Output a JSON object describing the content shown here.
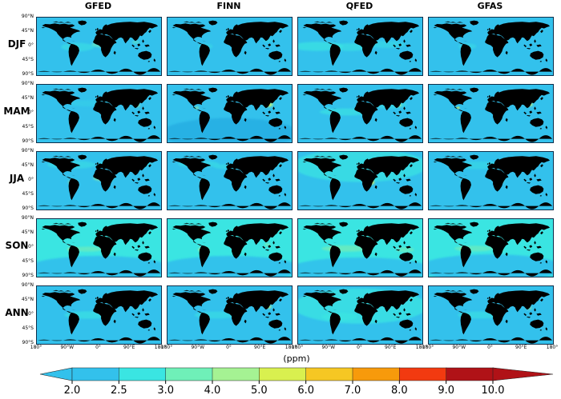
{
  "chart_data": {
    "type": "heatmap",
    "title": "",
    "columns": [
      "GFED",
      "FINN",
      "QFED",
      "GFAS"
    ],
    "rows": [
      "DJF",
      "MAM",
      "JJA",
      "SON",
      "ANN"
    ],
    "units": "(ppm)",
    "axis": {
      "lat_ticks": [
        "90°N",
        "45°N",
        "0°",
        "45°S",
        "90°S"
      ],
      "lon_ticks": [
        "180°",
        "90°W",
        "0°",
        "90°E",
        "180°"
      ]
    },
    "colorbar": {
      "ticks": [
        "2.0",
        "2.5",
        "3.0",
        "4.0",
        "5.0",
        "6.0",
        "7.0",
        "8.0",
        "9.0",
        "10.0"
      ],
      "colors": [
        "#33c1ec",
        "#3ae5e2",
        "#6ff0b8",
        "#a5f293",
        "#d9f04f",
        "#f6c723",
        "#f79a0b",
        "#f23a10",
        "#b01217"
      ],
      "extend": "both"
    },
    "palette": {
      "blue": "#33c1ec",
      "dkblue": "#27afe3",
      "cyan": "#3ae5e2",
      "teal": "#6ff0b8",
      "green": "#a5f293",
      "ygreen": "#d9f04f",
      "gold": "#f6c723",
      "orange": "#f79a0b",
      "red": "#f23a10",
      "dred": "#b01217"
    },
    "panels": [
      {
        "row": 0,
        "col": 0,
        "base": "blue",
        "blobs": [
          [
            118,
            92,
            48,
            13,
            "cyan",
            0.55,
            "s"
          ],
          [
            185,
            84,
            26,
            9,
            "teal",
            0.6,
            "s"
          ],
          [
            197,
            80,
            12,
            6,
            "ygreen",
            0.9,
            "s"
          ],
          [
            200,
            80,
            6,
            4,
            "gold",
            0.95,
            "m"
          ],
          [
            201,
            80,
            3,
            2.2,
            "red",
            0.95,
            "n"
          ],
          [
            287,
            77,
            11,
            5,
            "teal",
            0.5,
            "s"
          ]
        ]
      },
      {
        "row": 0,
        "col": 1,
        "base": "blue",
        "blobs": [
          [
            110,
            90,
            22,
            8,
            "cyan",
            0.4,
            "s"
          ],
          [
            290,
            72,
            12,
            6,
            "cyan",
            0.45,
            "s"
          ],
          [
            200,
            82,
            10,
            6,
            "green",
            0.8,
            "s"
          ],
          [
            200,
            82,
            4.5,
            3,
            "ygreen",
            0.9,
            "m"
          ]
        ]
      },
      {
        "row": 0,
        "col": 2,
        "base": "blue",
        "blobs": [
          [
            55,
            90,
            75,
            14,
            "cyan",
            0.7,
            "s"
          ],
          [
            150,
            92,
            55,
            12,
            "cyan",
            0.6,
            "s"
          ],
          [
            255,
            84,
            55,
            11,
            "cyan",
            0.45,
            "s"
          ],
          [
            199,
            78,
            17,
            6,
            "ygreen",
            0.95,
            "s"
          ],
          [
            201,
            78,
            8,
            4,
            "gold",
            0.95,
            "m"
          ],
          [
            203,
            78,
            3,
            2,
            "red",
            0.9,
            "n"
          ]
        ]
      },
      {
        "row": 0,
        "col": 3,
        "base": "blue",
        "blobs": [
          [
            112,
            90,
            26,
            9,
            "cyan",
            0.45,
            "s"
          ],
          [
            196,
            79,
            15,
            5.5,
            "ygreen",
            0.92,
            "s"
          ],
          [
            199,
            79,
            7,
            3.5,
            "gold",
            0.9,
            "m"
          ],
          [
            201,
            79,
            2.5,
            2,
            "red",
            0.85,
            "n"
          ]
        ]
      },
      {
        "row": 1,
        "col": 0,
        "base": "blue",
        "blobs": [
          [
            150,
            58,
            62,
            10,
            "cyan",
            0.25,
            "s"
          ],
          [
            200,
            86,
            9,
            6,
            "green",
            0.8,
            "s"
          ],
          [
            200,
            86,
            4,
            3,
            "ygreen",
            0.85,
            "m"
          ],
          [
            290,
            64,
            9,
            5,
            "green",
            0.75,
            "s"
          ]
        ]
      },
      {
        "row": 1,
        "col": 1,
        "base": "blue",
        "blobs": [
          [
            180,
            152,
            200,
            48,
            "dkblue",
            0.85,
            "s"
          ],
          [
            85,
            72,
            6,
            4,
            "green",
            0.7,
            "s"
          ],
          [
            200,
            84,
            8,
            5,
            "green",
            0.8,
            "s"
          ],
          [
            292,
            62,
            14,
            8,
            "green",
            0.85,
            "s"
          ],
          [
            292,
            62,
            7,
            4.5,
            "ygreen",
            0.9,
            "m"
          ],
          [
            292,
            62,
            3.5,
            2.5,
            "red",
            0.9,
            "n"
          ],
          [
            293,
            62,
            1.8,
            1.4,
            "dred",
            0.9,
            "n"
          ]
        ]
      },
      {
        "row": 1,
        "col": 2,
        "base": "blue",
        "blobs": [
          [
            140,
            85,
            78,
            11,
            "cyan",
            0.65,
            "s"
          ],
          [
            262,
            62,
            52,
            13,
            "cyan",
            0.45,
            "s"
          ],
          [
            290,
            64,
            10,
            5,
            "green",
            0.7,
            "s"
          ],
          [
            292,
            63,
            4,
            2.5,
            "ygreen",
            0.85,
            "m"
          ],
          [
            85,
            74,
            8,
            4,
            "cyan",
            0.6,
            "s"
          ]
        ]
      },
      {
        "row": 1,
        "col": 3,
        "base": "blue",
        "blobs": [
          [
            200,
            84,
            7,
            4,
            "green",
            0.5,
            "s"
          ],
          [
            85,
            72,
            5,
            3.5,
            "ygreen",
            0.7,
            "m"
          ],
          [
            292,
            62,
            10,
            6,
            "green",
            0.8,
            "s"
          ],
          [
            292,
            62,
            5,
            3,
            "ygreen",
            0.9,
            "m"
          ],
          [
            293,
            62,
            2,
            1.5,
            "gold",
            0.9,
            "n"
          ]
        ]
      },
      {
        "row": 2,
        "col": 0,
        "base": "blue",
        "blobs": [
          [
            100,
            40,
            70,
            13,
            "cyan",
            0.5,
            "s"
          ],
          [
            255,
            38,
            80,
            13,
            "cyan",
            0.45,
            "s"
          ],
          [
            105,
            95,
            14,
            7,
            "green",
            0.65,
            "s"
          ],
          [
            193,
            82,
            30,
            9,
            "green",
            0.55,
            "s"
          ],
          [
            203,
            88,
            14,
            8,
            "ygreen",
            0.9,
            "s"
          ],
          [
            204,
            89,
            8,
            5,
            "gold",
            0.95,
            "m"
          ],
          [
            205,
            89,
            5,
            3.5,
            "red",
            0.95,
            "n"
          ],
          [
            205,
            89,
            2.5,
            2,
            "dred",
            0.95,
            "n"
          ]
        ]
      },
      {
        "row": 2,
        "col": 1,
        "base": "blue",
        "blobs": [
          [
            90,
            38,
            60,
            11,
            "cyan",
            0.5,
            "s"
          ],
          [
            175,
            46,
            42,
            8,
            "cyan",
            0.5,
            "s"
          ],
          [
            272,
            40,
            62,
            10,
            "cyan",
            0.4,
            "s"
          ],
          [
            105,
            95,
            11,
            6,
            "green",
            0.45,
            "s"
          ],
          [
            205,
            90,
            12,
            8,
            "green",
            0.85,
            "s"
          ],
          [
            205,
            90,
            7,
            5,
            "ygreen",
            0.95,
            "m"
          ],
          [
            205,
            90,
            3,
            2,
            "gold",
            0.9,
            "n"
          ]
        ]
      },
      {
        "row": 2,
        "col": 2,
        "base": "blue",
        "blobs": [
          [
            180,
            42,
            195,
            52,
            "cyan",
            0.7,
            "s"
          ],
          [
            105,
            95,
            10,
            6,
            "green",
            0.55,
            "s"
          ],
          [
            205,
            95,
            16,
            9,
            "ygreen",
            0.85,
            "s"
          ],
          [
            205,
            95,
            9,
            5.5,
            "gold",
            0.95,
            "m"
          ],
          [
            206,
            95,
            5,
            3.5,
            "red",
            0.95,
            "n"
          ],
          [
            206,
            95,
            2,
            1.6,
            "dred",
            0.9,
            "n"
          ]
        ]
      },
      {
        "row": 2,
        "col": 3,
        "base": "blue",
        "blobs": [
          [
            145,
            42,
            95,
            12,
            "cyan",
            0.45,
            "s"
          ],
          [
            105,
            95,
            12,
            6,
            "green",
            0.55,
            "s"
          ],
          [
            203,
            90,
            14,
            8,
            "ygreen",
            0.8,
            "s"
          ],
          [
            204,
            90,
            8,
            5,
            "gold",
            0.9,
            "m"
          ],
          [
            205,
            90,
            4.5,
            3,
            "red",
            0.95,
            "n"
          ],
          [
            205,
            90,
            2,
            1.5,
            "dred",
            0.9,
            "n"
          ]
        ]
      },
      {
        "row": 3,
        "col": 0,
        "base": "cyan",
        "blobs": [
          [
            180,
            155,
            210,
            40,
            "blue",
            0.95,
            "s"
          ],
          [
            148,
            94,
            45,
            8,
            "green",
            0.35,
            "s"
          ],
          [
            105,
            95,
            16,
            8,
            "green",
            0.75,
            "s"
          ],
          [
            105,
            95,
            9,
            5,
            "ygreen",
            0.9,
            "m"
          ],
          [
            107,
            96,
            3,
            2,
            "gold",
            0.9,
            "n"
          ],
          [
            205,
            95,
            12,
            7,
            "green",
            0.75,
            "s"
          ],
          [
            205,
            95,
            6,
            3.5,
            "ygreen",
            0.9,
            "m"
          ]
        ]
      },
      {
        "row": 3,
        "col": 1,
        "base": "cyan",
        "blobs": [
          [
            180,
            155,
            210,
            40,
            "blue",
            0.95,
            "s"
          ],
          [
            290,
            80,
            9,
            5,
            "green",
            0.45,
            "s"
          ],
          [
            105,
            96,
            16,
            9,
            "green",
            0.8,
            "s"
          ],
          [
            105,
            96,
            10,
            6,
            "ygreen",
            0.95,
            "m"
          ],
          [
            105,
            96,
            5,
            3.5,
            "orange",
            0.95,
            "n"
          ],
          [
            105,
            96,
            2.2,
            1.8,
            "dred",
            0.9,
            "n"
          ],
          [
            205,
            95,
            12,
            7,
            "green",
            0.75,
            "s"
          ],
          [
            206,
            95,
            6,
            3.5,
            "ygreen",
            0.9,
            "m"
          ]
        ]
      },
      {
        "row": 3,
        "col": 2,
        "base": "cyan",
        "blobs": [
          [
            180,
            158,
            210,
            38,
            "blue",
            0.9,
            "s"
          ],
          [
            140,
            92,
            72,
            10,
            "green",
            0.4,
            "s"
          ],
          [
            105,
            95,
            13,
            7,
            "ygreen",
            0.85,
            "s"
          ],
          [
            106,
            95,
            5,
            3,
            "gold",
            0.85,
            "m"
          ],
          [
            205,
            95,
            10,
            6,
            "ygreen",
            0.8,
            "s"
          ],
          [
            310,
            96,
            26,
            8,
            "green",
            0.35,
            "s"
          ]
        ]
      },
      {
        "row": 3,
        "col": 3,
        "base": "cyan",
        "blobs": [
          [
            180,
            152,
            210,
            42,
            "blue",
            0.95,
            "s"
          ],
          [
            132,
            92,
            58,
            9,
            "green",
            0.35,
            "s"
          ],
          [
            105,
            95,
            13,
            7,
            "ygreen",
            0.85,
            "s"
          ],
          [
            106,
            95,
            5,
            3,
            "gold",
            0.9,
            "m"
          ],
          [
            106,
            95,
            2,
            1.5,
            "red",
            0.85,
            "n"
          ],
          [
            205,
            95,
            10,
            6,
            "ygreen",
            0.85,
            "s"
          ],
          [
            205,
            95,
            4,
            2.5,
            "gold",
            0.8,
            "m"
          ]
        ]
      },
      {
        "row": 4,
        "col": 0,
        "base": "blue",
        "blobs": [
          [
            150,
            90,
            70,
            12,
            "cyan",
            0.65,
            "s"
          ],
          [
            105,
            95,
            10,
            6,
            "green",
            0.5,
            "s"
          ],
          [
            200,
            86,
            12,
            7,
            "green",
            0.85,
            "s"
          ],
          [
            201,
            86,
            6,
            4,
            "ygreen",
            0.9,
            "m"
          ],
          [
            290,
            70,
            11,
            5,
            "cyan",
            0.5,
            "s"
          ]
        ]
      },
      {
        "row": 4,
        "col": 1,
        "base": "blue",
        "blobs": [
          [
            140,
            90,
            62,
            11,
            "cyan",
            0.55,
            "s"
          ],
          [
            105,
            95,
            8,
            5,
            "green",
            0.5,
            "s"
          ],
          [
            200,
            86,
            9,
            6,
            "green",
            0.8,
            "s"
          ],
          [
            292,
            64,
            10,
            6,
            "green",
            0.8,
            "s"
          ],
          [
            292,
            64,
            4,
            2.5,
            "ygreen",
            0.85,
            "m"
          ]
        ]
      },
      {
        "row": 4,
        "col": 2,
        "base": "blue",
        "blobs": [
          [
            180,
            62,
            195,
            55,
            "cyan",
            0.75,
            "s"
          ],
          [
            120,
            95,
            52,
            12,
            "cyan",
            0.75,
            "s"
          ],
          [
            105,
            95,
            9,
            5,
            "green",
            0.6,
            "s"
          ],
          [
            200,
            85,
            12,
            7,
            "green",
            0.85,
            "s"
          ],
          [
            201,
            85,
            5,
            3,
            "ygreen",
            0.9,
            "m"
          ]
        ]
      },
      {
        "row": 4,
        "col": 3,
        "base": "blue",
        "blobs": [
          [
            150,
            90,
            66,
            11,
            "cyan",
            0.6,
            "s"
          ],
          [
            105,
            95,
            9,
            5,
            "green",
            0.5,
            "s"
          ],
          [
            200,
            86,
            11,
            6,
            "green",
            0.85,
            "s"
          ],
          [
            201,
            86,
            5,
            3,
            "ygreen",
            0.9,
            "m"
          ],
          [
            290,
            68,
            9,
            5,
            "green",
            0.55,
            "s"
          ]
        ]
      }
    ]
  }
}
